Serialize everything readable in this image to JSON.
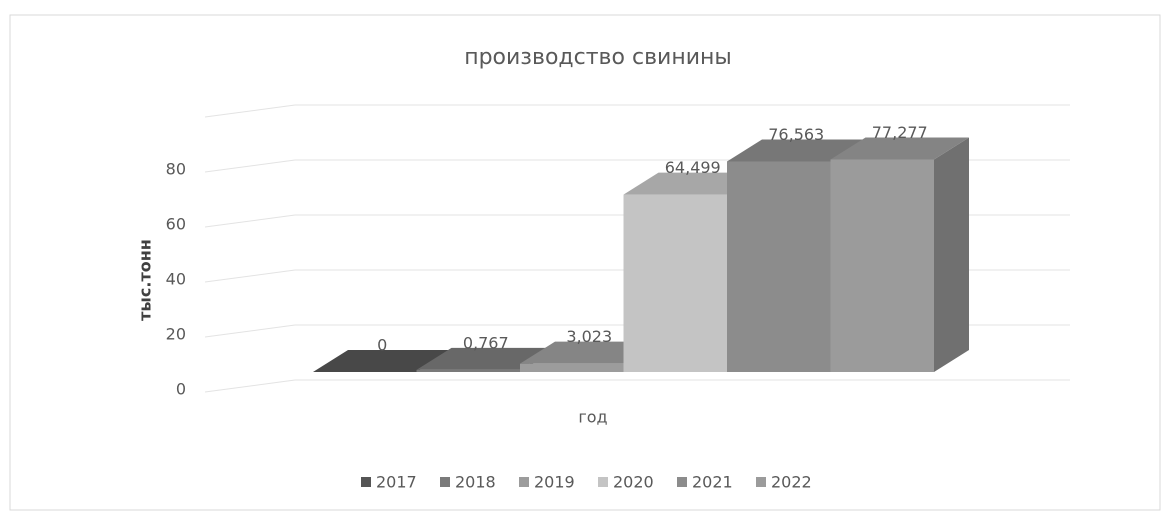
{
  "chart_data": {
    "type": "bar3d",
    "title": "производство свинины",
    "y_label": "тыс.тонн",
    "x_label": "год",
    "ylim": [
      0,
      100
    ],
    "yticks": [
      0,
      20,
      40,
      60,
      80
    ],
    "grid": true,
    "legend": "bottom",
    "series": [
      {
        "name": "2017",
        "color": "#555555",
        "values": [
          0
        ],
        "value_labels": [
          "0"
        ]
      },
      {
        "name": "2018",
        "color": "#7a7a7a",
        "values": [
          0.767
        ],
        "value_labels": [
          "0,767"
        ]
      },
      {
        "name": "2019",
        "color": "#9c9c9c",
        "values": [
          3.023
        ],
        "value_labels": [
          "3,023"
        ]
      },
      {
        "name": "2020",
        "color": "#c4c4c4",
        "values": [
          64.499
        ],
        "value_labels": [
          "64,499"
        ]
      },
      {
        "name": "2021",
        "color": "#8c8c8c",
        "values": [
          76.563
        ],
        "value_labels": [
          "76,563"
        ]
      },
      {
        "name": "2022",
        "color": "#9b9b9b",
        "values": [
          77.277
        ],
        "value_labels": [
          "77,277"
        ]
      }
    ]
  }
}
